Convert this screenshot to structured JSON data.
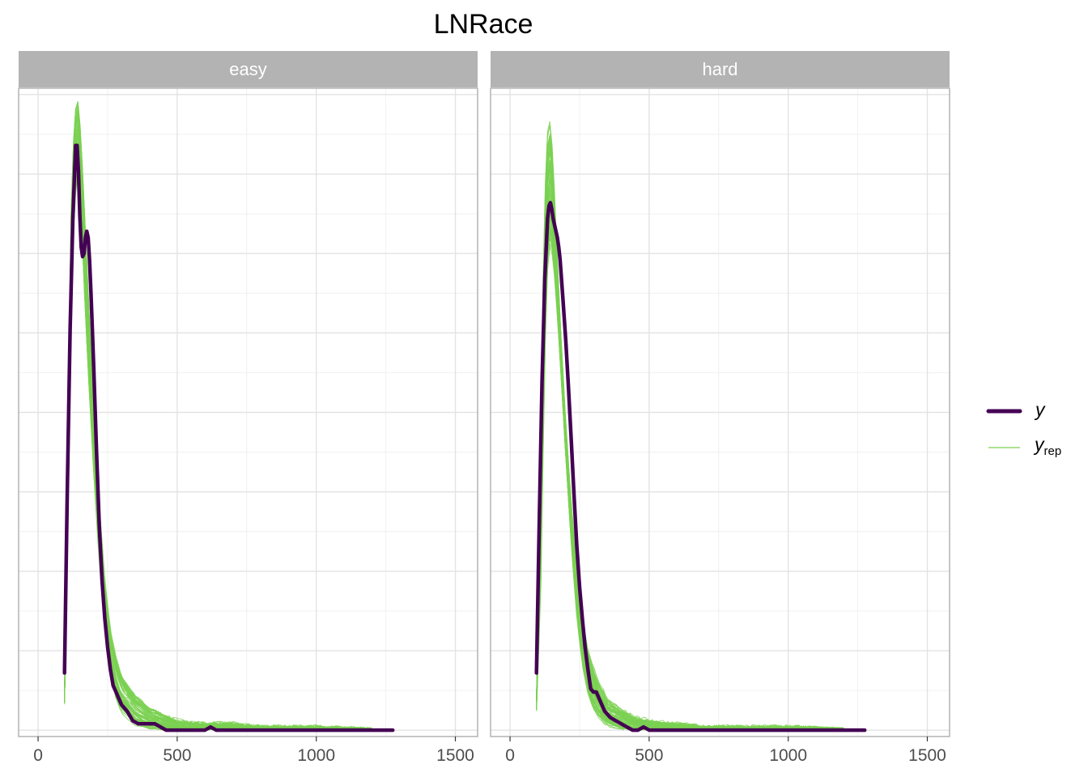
{
  "title": "LNRace",
  "colors": {
    "strip_bg": "#b3b3b3",
    "strip_text": "#ffffff",
    "panel_border": "#b3b3b3",
    "grid_major": "#e3e3e3",
    "grid_minor": "#f0f0f0",
    "tick_text": "#4d4d4d",
    "y_line": "#440154",
    "yrep_line": "#7ad151"
  },
  "legend": {
    "position": "right",
    "y_label": "y",
    "yrep_label": "y",
    "yrep_sub": "rep"
  },
  "chart_data": {
    "type": "line",
    "title": "LNRace",
    "xlabel": "",
    "ylabel": "",
    "facets": [
      "easy",
      "hard"
    ],
    "xlim": [
      -70,
      1580
    ],
    "ylim": [
      -0.0002,
      0.0202
    ],
    "x_ticks": [
      0,
      500,
      1000,
      1500
    ],
    "y_axis_labels_shown": false,
    "grid": true,
    "legend_position": "right",
    "series_names": [
      "y",
      "y_rep"
    ],
    "panels": [
      {
        "name": "easy",
        "y": {
          "x": [
            95,
            105,
            115,
            125,
            135,
            140,
            145,
            150,
            155,
            160,
            165,
            170,
            175,
            180,
            185,
            190,
            195,
            200,
            210,
            220,
            230,
            240,
            250,
            260,
            270,
            280,
            290,
            300,
            320,
            340,
            360,
            380,
            400,
            420,
            440,
            460,
            500,
            550,
            600,
            620,
            640,
            700,
            800,
            900,
            1000,
            1100,
            1200,
            1275
          ],
          "values": [
            0.0018,
            0.0075,
            0.0126,
            0.0161,
            0.0184,
            0.0184,
            0.0176,
            0.0162,
            0.0152,
            0.0149,
            0.015,
            0.0155,
            0.0157,
            0.0155,
            0.0148,
            0.0138,
            0.0126,
            0.0114,
            0.0088,
            0.0064,
            0.0047,
            0.0035,
            0.0026,
            0.0019,
            0.0014,
            0.0012,
            0.001,
            0.0008,
            0.0006,
            0.0003,
            0.0002,
            0.0002,
            0.0002,
            0.0002,
            0.0001,
            0.0,
            0.0,
            0.0,
            0.0,
            0.0001,
            0.0,
            0.0,
            0.0,
            0.0,
            0.0,
            0.0,
            0.0,
            0.0
          ]
        },
        "y_rep_envelope": {
          "x": [
            95,
            110,
            120,
            130,
            140,
            145,
            150,
            155,
            160,
            170,
            180,
            200,
            220,
            240,
            260,
            280,
            300,
            350,
            400,
            450,
            500,
            600,
            700,
            800,
            1000,
            1200
          ],
          "lower": [
            0.0008,
            0.0075,
            0.0135,
            0.0162,
            0.0172,
            0.0174,
            0.017,
            0.016,
            0.015,
            0.013,
            0.0112,
            0.008,
            0.0052,
            0.003,
            0.0017,
            0.0009,
            0.0005,
            0.0001,
            0.0,
            0.0,
            0.0,
            0.0,
            0.0,
            0.0,
            0.0,
            0.0
          ],
          "upper": [
            0.0012,
            0.0115,
            0.017,
            0.0192,
            0.02,
            0.0197,
            0.0192,
            0.0185,
            0.0176,
            0.0158,
            0.0138,
            0.0102,
            0.0072,
            0.0048,
            0.0032,
            0.0024,
            0.0018,
            0.0011,
            0.0007,
            0.0005,
            0.0003,
            0.0002,
            0.0002,
            0.0001,
            0.0001,
            0.0
          ]
        }
      },
      {
        "name": "hard",
        "y": {
          "x": [
            95,
            105,
            115,
            125,
            135,
            140,
            145,
            150,
            155,
            160,
            165,
            170,
            175,
            180,
            190,
            200,
            210,
            220,
            230,
            240,
            250,
            260,
            270,
            280,
            290,
            300,
            310,
            320,
            340,
            360,
            380,
            400,
            420,
            440,
            460,
            480,
            500,
            550,
            600,
            700,
            800,
            900,
            1000,
            1100,
            1200,
            1275
          ],
          "values": [
            0.0018,
            0.0065,
            0.011,
            0.0142,
            0.0161,
            0.0165,
            0.0166,
            0.0164,
            0.0161,
            0.0159,
            0.0157,
            0.0155,
            0.0152,
            0.0148,
            0.0136,
            0.0123,
            0.0108,
            0.0091,
            0.0074,
            0.0058,
            0.0045,
            0.0035,
            0.0026,
            0.0019,
            0.0013,
            0.0012,
            0.0012,
            0.001,
            0.0006,
            0.0004,
            0.0003,
            0.0002,
            0.0001,
            0.0,
            0.0,
            0.0001,
            0.0,
            0.0,
            0.0,
            0.0,
            0.0,
            0.0,
            0.0,
            0.0,
            0.0,
            0.0
          ]
        },
        "y_rep_envelope": {
          "x": [
            95,
            110,
            120,
            130,
            140,
            150,
            155,
            160,
            170,
            180,
            200,
            220,
            240,
            260,
            280,
            300,
            320,
            350,
            400,
            450,
            500,
            600,
            700,
            800,
            1000,
            1200
          ],
          "lower": [
            0.0006,
            0.004,
            0.009,
            0.0135,
            0.0152,
            0.015,
            0.0147,
            0.0142,
            0.013,
            0.0116,
            0.0086,
            0.0058,
            0.0035,
            0.002,
            0.0011,
            0.0006,
            0.0003,
            0.0001,
            0.0,
            0.0,
            0.0,
            0.0,
            0.0,
            0.0,
            0.0,
            0.0
          ],
          "upper": [
            0.001,
            0.009,
            0.015,
            0.0185,
            0.0196,
            0.0188,
            0.018,
            0.017,
            0.015,
            0.013,
            0.0098,
            0.0072,
            0.0052,
            0.0036,
            0.0026,
            0.002,
            0.0015,
            0.001,
            0.0007,
            0.0004,
            0.0003,
            0.0002,
            0.0001,
            0.0001,
            0.0001,
            0.0
          ]
        }
      }
    ]
  }
}
